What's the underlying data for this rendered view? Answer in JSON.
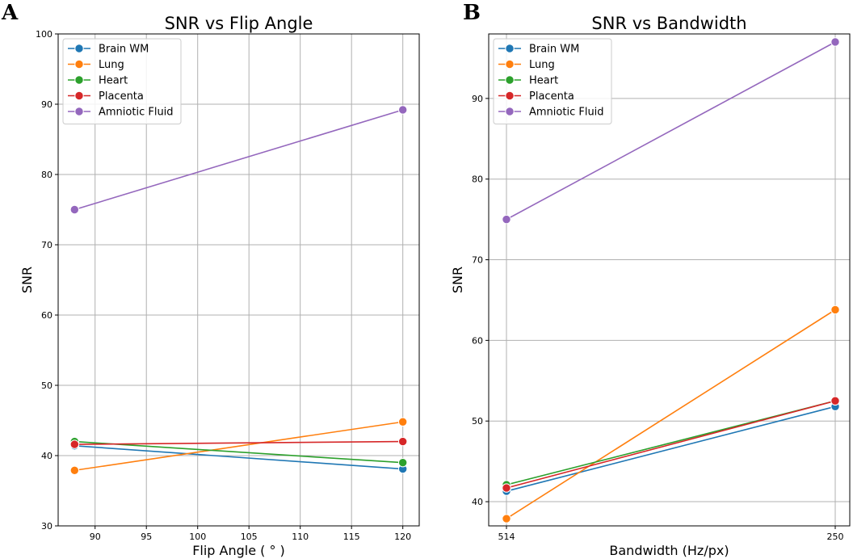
{
  "chart_data": [
    {
      "type": "line",
      "panel": "A",
      "title": "SNR vs Flip Angle",
      "xlabel": "Flip Angle ( $^\\circ$ )",
      "xlabel_display": "Flip Angle ( ° )",
      "ylabel": "SNR",
      "x": [
        88,
        120
      ],
      "xlim": [
        86.4,
        121.6
      ],
      "ylim": [
        30,
        100
      ],
      "xticks": [
        90,
        95,
        100,
        105,
        110,
        115,
        120
      ],
      "yticks": [
        30,
        40,
        50,
        60,
        70,
        80,
        90,
        100
      ],
      "grid": true,
      "legend_position": "top-left",
      "series": [
        {
          "name": "Brain WM",
          "color": "#1f77b4",
          "values": [
            41.4,
            38.1
          ]
        },
        {
          "name": "Lung",
          "color": "#ff7f0e",
          "values": [
            37.9,
            44.8
          ]
        },
        {
          "name": "Heart",
          "color": "#2ca02c",
          "values": [
            42.0,
            39.0
          ]
        },
        {
          "name": "Placenta",
          "color": "#d62728",
          "values": [
            41.6,
            42.0
          ]
        },
        {
          "name": "Amniotic Fluid",
          "color": "#9467bd",
          "values": [
            75.0,
            89.2
          ]
        }
      ]
    },
    {
      "type": "line",
      "panel": "B",
      "title": "SNR vs Bandwidth",
      "xlabel": "Bandwidth (Hz/px)",
      "ylabel": "SNR",
      "categories": [
        "514",
        "250"
      ],
      "ylim": [
        37,
        98
      ],
      "yticks": [
        40,
        50,
        60,
        70,
        80,
        90
      ],
      "grid": true,
      "legend_position": "top-left",
      "series": [
        {
          "name": "Brain WM",
          "color": "#1f77b4",
          "values": [
            41.3,
            51.8
          ]
        },
        {
          "name": "Lung",
          "color": "#ff7f0e",
          "values": [
            37.9,
            63.8
          ]
        },
        {
          "name": "Heart",
          "color": "#2ca02c",
          "values": [
            42.1,
            52.5
          ]
        },
        {
          "name": "Placenta",
          "color": "#d62728",
          "values": [
            41.7,
            52.5
          ]
        },
        {
          "name": "Amniotic Fluid",
          "color": "#9467bd",
          "values": [
            75.0,
            97.0
          ]
        }
      ]
    }
  ]
}
